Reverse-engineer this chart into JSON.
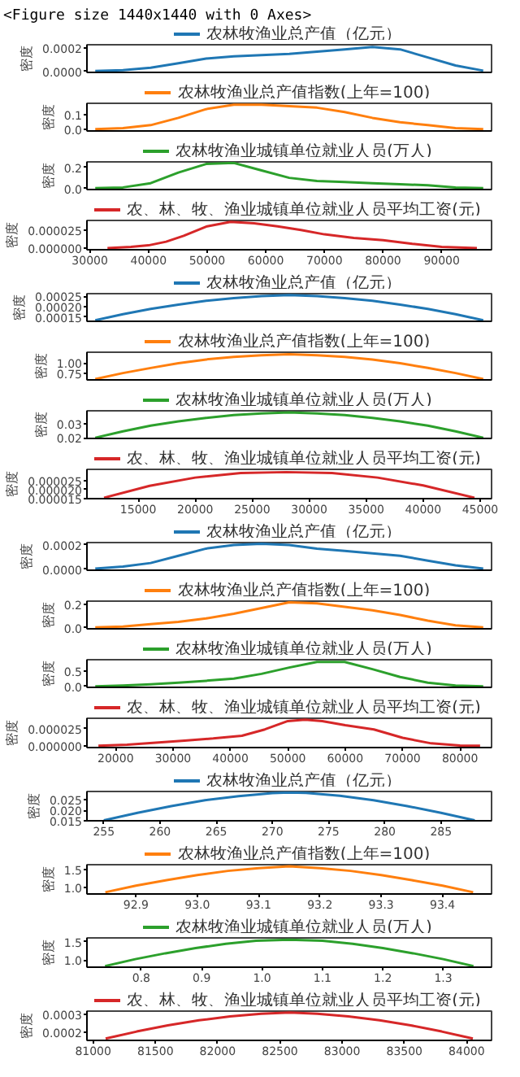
{
  "chart_data": [
    {
      "type": "line",
      "annotations": [
        "<Figure size 1440x1440 with 0 Axes>"
      ],
      "ylabel": "密度",
      "legend": "top",
      "tick_labels": "y",
      "categories": [
        null,
        null,
        null,
        null,
        null,
        null,
        null,
        null,
        null,
        null,
        null,
        null,
        null,
        null,
        null
      ],
      "ylim": [
        -1e-05,
        0.00023
      ],
      "yticks": [
        {
          "value": 0,
          "label": "0.0000"
        },
        0.0002
      ],
      "series": [
        {
          "name": "农林牧渔业总产值（亿元）",
          "color": "#1f77b4",
          "values": [
            3e-06,
            1e-05,
            3e-05,
            7e-05,
            0.00011,
            0.00013,
            0.00014,
            0.00015,
            0.00017,
            0.00019,
            0.00021,
            0.00019,
            0.00012,
            5e-05,
            5e-06
          ]
        }
      ]
    },
    {
      "type": "line",
      "ylabel": "密度",
      "legend": "top",
      "tick_labels": "y",
      "categories": [
        null,
        null,
        null,
        null,
        null,
        null,
        null,
        null,
        null,
        null,
        null,
        null,
        null,
        null,
        null
      ],
      "ylim": [
        -0.01,
        0.18
      ],
      "yticks": [
        {
          "value": 0,
          "label": "0.0"
        },
        0.1
      ],
      "series": [
        {
          "name": "农林牧渔业总产值指数(上年=100)",
          "color": "#ff7f0e",
          "values": [
            0.003,
            0.01,
            0.03,
            0.08,
            0.14,
            0.17,
            0.17,
            0.16,
            0.15,
            0.12,
            0.08,
            0.05,
            0.03,
            0.01,
            0.003
          ]
        }
      ]
    },
    {
      "type": "line",
      "ylabel": "密度",
      "legend": "top",
      "tick_labels": "y",
      "categories": [
        null,
        null,
        null,
        null,
        null,
        null,
        null,
        null,
        null,
        null,
        null,
        null,
        null,
        null,
        null
      ],
      "ylim": [
        -0.01,
        0.25
      ],
      "yticks": [
        {
          "value": 0,
          "label": "0.0"
        },
        0.2
      ],
      "series": [
        {
          "name": "农林牧渔业城镇单位就业人员(万人)",
          "color": "#2ca02c",
          "values": [
            0.003,
            0.01,
            0.05,
            0.15,
            0.23,
            0.24,
            0.17,
            0.1,
            0.07,
            0.06,
            0.05,
            0.04,
            0.03,
            0.01,
            0.003
          ]
        }
      ]
    },
    {
      "type": "line",
      "ylabel": "密度",
      "legend": "top",
      "x": [
        33000,
        37000,
        40000,
        43000,
        46000,
        50000,
        54000,
        58000,
        62000,
        66000,
        70000,
        75000,
        80000,
        85000,
        90000,
        96000
      ],
      "xlim": [
        29500,
        98500
      ],
      "xticks": [
        30000,
        40000,
        50000,
        60000,
        70000,
        80000,
        90000
      ],
      "ylim": [
        -2e-06,
        3.8e-05
      ],
      "yticks": [
        {
          "value": 0,
          "label": "0.000000"
        },
        {
          "value": 2.5e-05,
          "label": "0.000025"
        }
      ],
      "series": [
        {
          "name": "农、林、牧、渔业城镇单位就业人员平均工资(元)",
          "color": "#d62728",
          "values": [
            3e-07,
            2e-06,
            4e-06,
            9e-06,
            1.7e-05,
            3e-05,
            3.6e-05,
            3.4e-05,
            3e-05,
            2.5e-05,
            1.9e-05,
            1.4e-05,
            1.1e-05,
            6e-06,
            2e-06,
            3e-07
          ]
        }
      ]
    },
    {
      "type": "line",
      "ylabel": "密度",
      "legend": "top",
      "tick_labels": "y",
      "categories": [
        null,
        null,
        null,
        null,
        null,
        null,
        null,
        null,
        null,
        null,
        null,
        null,
        null,
        null,
        null
      ],
      "ylim": [
        0.00013,
        0.000262
      ],
      "yticks": [
        0.00015,
        {
          "value": 0.0002,
          "label": "0.00020"
        },
        0.00025
      ],
      "series": [
        {
          "name": "农林牧渔业总产值（亿元）",
          "color": "#1f77b4",
          "values": [
            0.000135,
            0.000164,
            0.000189,
            0.00021,
            0.000228,
            0.000241,
            0.00025,
            0.000255,
            0.00025,
            0.000241,
            0.000228,
            0.00021,
            0.000189,
            0.000164,
            0.000135
          ]
        }
      ]
    },
    {
      "type": "line",
      "ylabel": "密度",
      "legend": "top",
      "tick_labels": "y",
      "categories": [
        null,
        null,
        null,
        null,
        null,
        null,
        null,
        null,
        null,
        null,
        null,
        null,
        null,
        null,
        null
      ],
      "ylim": [
        0.6,
        1.25
      ],
      "yticks": [
        0.75,
        {
          "value": 1,
          "label": "1.00"
        }
      ],
      "series": [
        {
          "name": "农林牧渔业总产值指数(上年=100)",
          "color": "#ff7f0e",
          "values": [
            0.62,
            0.76,
            0.88,
            0.99,
            1.08,
            1.14,
            1.18,
            1.2,
            1.18,
            1.14,
            1.08,
            0.99,
            0.88,
            0.76,
            0.62
          ]
        }
      ]
    },
    {
      "type": "line",
      "ylabel": "密度",
      "legend": "top",
      "tick_labels": "y",
      "categories": [
        null,
        null,
        null,
        null,
        null,
        null,
        null,
        null,
        null,
        null,
        null,
        null,
        null,
        null,
        null
      ],
      "ylim": [
        0.0195,
        0.039
      ],
      "yticks": [
        0.02,
        0.03
      ],
      "series": [
        {
          "name": "农林牧渔业城镇单位就业人员(万人)",
          "color": "#2ca02c",
          "values": [
            0.02,
            0.0245,
            0.0285,
            0.0315,
            0.034,
            0.036,
            0.0372,
            0.0378,
            0.0372,
            0.036,
            0.034,
            0.0315,
            0.0285,
            0.0245,
            0.02
          ]
        }
      ]
    },
    {
      "type": "line",
      "ylabel": "密度",
      "legend": "top",
      "x": [
        12000,
        16000,
        20000,
        24000,
        28000,
        32000,
        36000,
        40000,
        44500
      ],
      "xlim": [
        10500,
        46000
      ],
      "xticks": [
        15000,
        20000,
        25000,
        30000,
        35000,
        40000,
        45000
      ],
      "ylim": [
        1.5e-05,
        3.1e-05
      ],
      "yticks": [
        {
          "value": 1.5e-05,
          "label": "0.000015"
        },
        {
          "value": 2e-05,
          "label": "0.000020"
        },
        {
          "value": 2.5e-05,
          "label": "0.000025"
        }
      ],
      "series": [
        {
          "name": "农、林、牧、渔业城镇单位就业人员平均工资(元)",
          "color": "#d62728",
          "values": [
            1.55e-05,
            2.2e-05,
            2.65e-05,
            2.9e-05,
            2.95e-05,
            2.9e-05,
            2.65e-05,
            2.22e-05,
            1.55e-05
          ]
        }
      ]
    },
    {
      "type": "line",
      "ylabel": "密度",
      "legend": "top",
      "tick_labels": "y",
      "categories": [
        null,
        null,
        null,
        null,
        null,
        null,
        null,
        null,
        null,
        null,
        null,
        null,
        null,
        null,
        null
      ],
      "ylim": [
        -1e-05,
        0.00022
      ],
      "yticks": [
        {
          "value": 0,
          "label": "0.0000"
        },
        0.0002
      ],
      "series": [
        {
          "name": "农林牧渔业总产值（亿元）",
          "color": "#1f77b4",
          "values": [
            3e-06,
            2e-05,
            5e-05,
            0.00011,
            0.00017,
            0.0002,
            0.00021,
            0.0002,
            0.00017,
            0.00015,
            0.00013,
            0.00011,
            7e-05,
            3e-05,
            3e-06
          ]
        }
      ]
    },
    {
      "type": "line",
      "ylabel": "密度",
      "legend": "top",
      "tick_labels": "y",
      "categories": [
        null,
        null,
        null,
        null,
        null,
        null,
        null,
        null,
        null,
        null,
        null,
        null,
        null,
        null,
        null
      ],
      "ylim": [
        -0.01,
        0.23
      ],
      "yticks": [
        {
          "value": 0,
          "label": "0.0"
        },
        0.2
      ],
      "series": [
        {
          "name": "农林牧渔业总产值指数(上年=100)",
          "color": "#ff7f0e",
          "values": [
            0.003,
            0.01,
            0.03,
            0.05,
            0.08,
            0.12,
            0.17,
            0.22,
            0.21,
            0.18,
            0.15,
            0.11,
            0.06,
            0.02,
            0.003
          ]
        }
      ]
    },
    {
      "type": "line",
      "ylabel": "密度",
      "legend": "top",
      "tick_labels": "y",
      "categories": [
        null,
        null,
        null,
        null,
        null,
        null,
        null,
        null,
        null,
        null,
        null,
        null,
        null,
        null,
        null
      ],
      "ylim": [
        -0.03,
        0.85
      ],
      "yticks": [
        {
          "value": 0,
          "label": "0.0"
        },
        0.5
      ],
      "series": [
        {
          "name": "农林牧渔业城镇单位就业人员(万人)",
          "color": "#2ca02c",
          "values": [
            0.005,
            0.03,
            0.07,
            0.12,
            0.18,
            0.25,
            0.4,
            0.6,
            0.78,
            0.78,
            0.55,
            0.3,
            0.12,
            0.03,
            0.005
          ]
        }
      ]
    },
    {
      "type": "line",
      "ylabel": "密度",
      "legend": "top",
      "x": [
        17000,
        22000,
        27000,
        32000,
        37000,
        42000,
        46000,
        50000,
        53000,
        56000,
        60000,
        65000,
        70000,
        75000,
        80000,
        83500
      ],
      "xlim": [
        15000,
        85500
      ],
      "xticks": [
        20000,
        30000,
        40000,
        50000,
        60000,
        70000,
        80000
      ],
      "ylim": [
        -2e-06,
        4e-05
      ],
      "yticks": [
        {
          "value": 0,
          "label": "0.000000"
        },
        {
          "value": 2.5e-05,
          "label": "0.000025"
        }
      ],
      "series": [
        {
          "name": "农、林、牧、渔业城镇单位就业人员平均工资(元)",
          "color": "#d62728",
          "values": [
            5e-07,
            2e-06,
            5e-06,
            8e-06,
            1.1e-05,
            1.5e-05,
            2.4e-05,
            3.6e-05,
            3.8e-05,
            3.6e-05,
            3e-05,
            2.4e-05,
            1.2e-05,
            4e-06,
            1e-06,
            5e-07
          ]
        }
      ]
    },
    {
      "type": "line",
      "ylabel": "密度",
      "legend": "top",
      "x": [
        255,
        258,
        261,
        264,
        267,
        270,
        271.5,
        273,
        276,
        279,
        282,
        285,
        288
      ],
      "xlim": [
        253.5,
        289.5
      ],
      "xticks": [
        255,
        260,
        265,
        270,
        275,
        280,
        285
      ],
      "ylim": [
        0.015,
        0.029
      ],
      "yticks": [
        0.015,
        {
          "value": 0.02,
          "label": "0.020"
        },
        0.025
      ],
      "series": [
        {
          "name": "农林牧渔业总产值（亿元）",
          "color": "#1f77b4",
          "values": [
            0.0152,
            0.0188,
            0.022,
            0.0248,
            0.0268,
            0.0282,
            0.0285,
            0.0283,
            0.027,
            0.0248,
            0.022,
            0.0188,
            0.0152
          ]
        }
      ]
    },
    {
      "type": "line",
      "ylabel": "密度",
      "legend": "top",
      "x": [
        92.85,
        92.9,
        92.95,
        93.0,
        93.05,
        93.1,
        93.15,
        93.2,
        93.25,
        93.3,
        93.35,
        93.4,
        93.45
      ],
      "xlim": [
        92.82,
        93.48
      ],
      "xticks": [
        92.9,
        {
          "value": 93,
          "label": "93.0"
        },
        93.1,
        93.2,
        93.3,
        93.4
      ],
      "ylim": [
        0.8,
        1.65
      ],
      "yticks": [
        {
          "value": 1,
          "label": "1.0"
        },
        1.5
      ],
      "series": [
        {
          "name": "农林牧渔业总产值指数(上年=100)",
          "color": "#ff7f0e",
          "values": [
            0.85,
            1.04,
            1.2,
            1.35,
            1.47,
            1.55,
            1.6,
            1.55,
            1.47,
            1.35,
            1.2,
            1.04,
            0.85
          ]
        }
      ]
    },
    {
      "type": "line",
      "ylabel": "密度",
      "legend": "top",
      "x": [
        0.74,
        0.79,
        0.84,
        0.89,
        0.94,
        0.99,
        1.045,
        1.1,
        1.15,
        1.2,
        1.25,
        1.3,
        1.35
      ],
      "xlim": [
        0.71,
        1.38
      ],
      "xticks": [
        0.8,
        0.9,
        {
          "value": 1,
          "label": "1.0"
        },
        1.1,
        1.2,
        1.3
      ],
      "ylim": [
        0.8,
        1.6
      ],
      "yticks": [
        {
          "value": 1,
          "label": "1.0"
        },
        1.5
      ],
      "series": [
        {
          "name": "农林牧渔业城镇单位就业人员(万人)",
          "color": "#2ca02c",
          "values": [
            0.83,
            1.02,
            1.18,
            1.32,
            1.44,
            1.52,
            1.55,
            1.52,
            1.44,
            1.32,
            1.18,
            1.02,
            0.83
          ]
        }
      ]
    },
    {
      "type": "line",
      "ylabel": "密度",
      "legend": "top",
      "x": [
        81100,
        81350,
        81600,
        81850,
        82100,
        82350,
        82580,
        82800,
        83050,
        83300,
        83550,
        83800,
        84050
      ],
      "xlim": [
        80950,
        84200
      ],
      "xticks": [
        81000,
        81500,
        82000,
        82500,
        83000,
        83500,
        84000
      ],
      "ylim": [
        0.000155,
        0.00032
      ],
      "yticks": [
        0.0002,
        0.0003
      ],
      "series": [
        {
          "name": "农、林、牧、渔业城镇单位就业人员平均工资(元)",
          "color": "#d62728",
          "values": [
            0.000165,
            0.000205,
            0.00024,
            0.000268,
            0.00029,
            0.000305,
            0.000312,
            0.000305,
            0.00029,
            0.000268,
            0.00024,
            0.000205,
            0.000165
          ]
        }
      ]
    }
  ]
}
